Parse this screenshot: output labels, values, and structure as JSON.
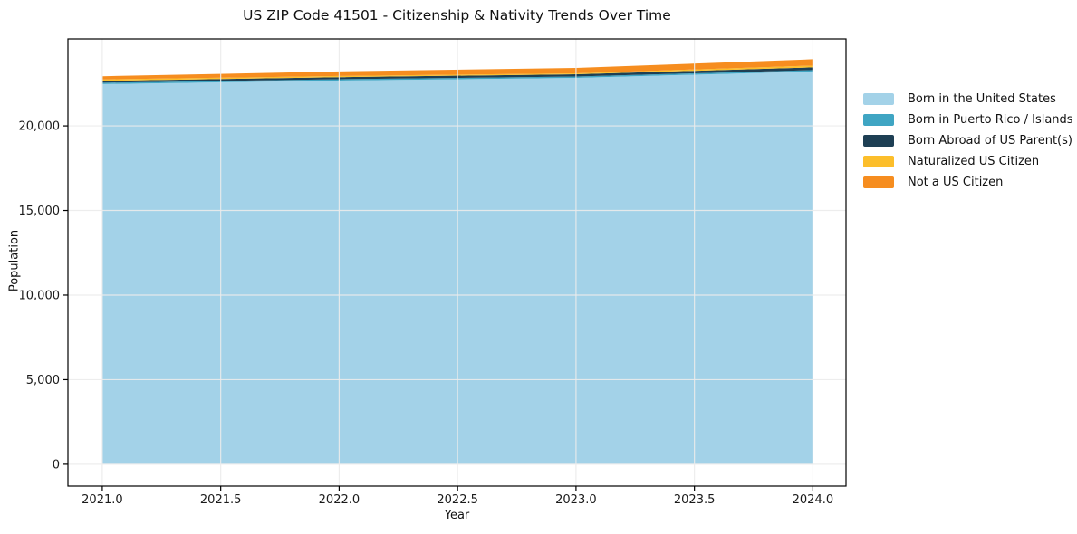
{
  "chart_data": {
    "type": "area",
    "stacked": true,
    "title": "US ZIP Code 41501 - Citizenship & Nativity Trends Over Time",
    "xlabel": "Year",
    "ylabel": "Population",
    "x": [
      2021,
      2022,
      2023,
      2024
    ],
    "series": [
      {
        "name": "Born in the United States",
        "color": "#a3d2e8",
        "values": [
          22470,
          22680,
          22840,
          23220
        ]
      },
      {
        "name": "Born in Puerto Rico / Islands",
        "color": "#3fa5c3",
        "values": [
          80,
          80,
          80,
          80
        ]
      },
      {
        "name": "Born Abroad of US Parent(s)",
        "color": "#1e3f54",
        "values": [
          110,
          120,
          135,
          160
        ]
      },
      {
        "name": "Naturalized US Citizen",
        "color": "#fcbe2b",
        "values": [
          85,
          70,
          55,
          105
        ]
      },
      {
        "name": "Not a US Citizen",
        "color": "#f68d1f",
        "values": [
          190,
          270,
          320,
          375
        ]
      }
    ],
    "xlim": [
      2020.855,
      2024.14
    ],
    "ylim": [
      -1290,
      25140
    ],
    "xticks": {
      "values": [
        2021.0,
        2021.5,
        2022.0,
        2022.5,
        2023.0,
        2023.5,
        2024.0
      ],
      "labels": [
        "2021.0",
        "2021.5",
        "2022.0",
        "2022.5",
        "2023.0",
        "2023.5",
        "2024.0"
      ]
    },
    "yticks": {
      "values": [
        0,
        5000,
        10000,
        15000,
        20000
      ],
      "labels": [
        "0",
        "5,000",
        "10,000",
        "15,000",
        "20,000"
      ]
    },
    "grid": true,
    "grid_on_top": true,
    "legend_position": "right-outside",
    "colors": {
      "background": "#ffffff",
      "grid": "#ececec",
      "frame": "#000000",
      "text": "#1a1a1a"
    }
  }
}
